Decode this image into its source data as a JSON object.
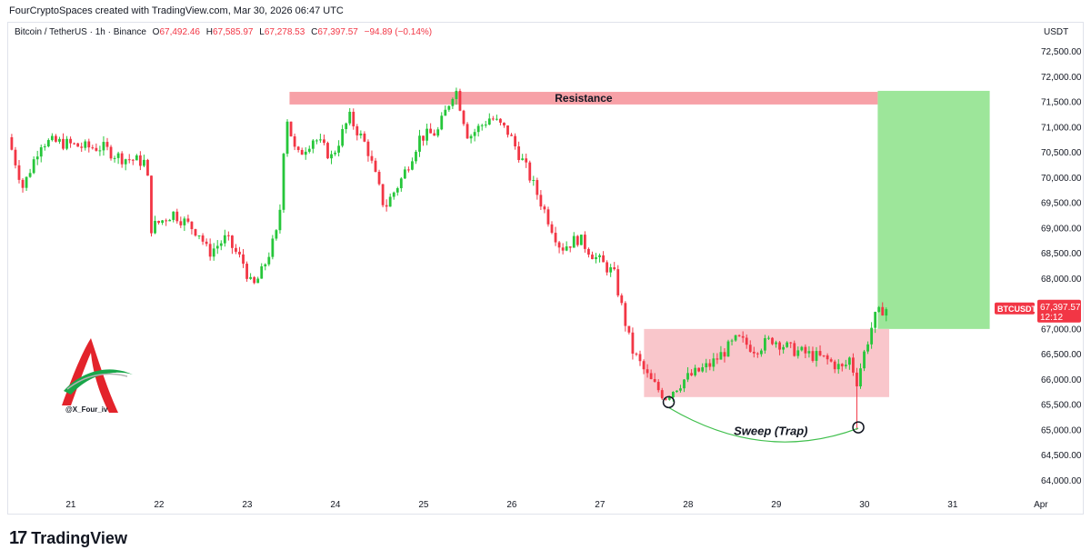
{
  "header": {
    "credit": "FourCryptoSpaces created with TradingView.com, Mar 30, 2026 06:47 UTC"
  },
  "symbol": {
    "name": "Bitcoin / TetherUS · 1h · Binance",
    "o_label": "O",
    "o_value": "67,492.46",
    "h_label": "H",
    "h_value": "67,585.97",
    "l_label": "L",
    "l_value": "67,278.53",
    "c_label": "C",
    "c_value": "67,397.57",
    "change": "−94.89 (−0.14%)"
  },
  "axis": {
    "unit": "USDT"
  },
  "price_tag": {
    "ticker": "BTCUSDT",
    "price": "67,397.57",
    "countdown": "12:12"
  },
  "watermark": {
    "handle": "@X_Four_iv"
  },
  "footer": {
    "brand_mark": "17",
    "brand_name": "TradingView"
  },
  "colors": {
    "up": "#22ab94",
    "up_candle": "#26c63a",
    "down": "#f23645",
    "resistance_fill": "#f7a1a7",
    "range_fill": "#f9c6cb",
    "target_fill": "#9de69a",
    "curve": "#3fbf4c"
  },
  "chart_data": {
    "type": "candlestick",
    "title": "Bitcoin / TetherUS · 1h · Binance",
    "y_ticks": [
      "64,000.00",
      "64,500.00",
      "65,000.00",
      "65,500.00",
      "66,000.00",
      "66,500.00",
      "67,000.00",
      "67,500.00",
      "68,000.00",
      "68,500.00",
      "69,000.00",
      "69,500.00",
      "70,000.00",
      "70,500.00",
      "71,000.00",
      "71,500.00",
      "72,000.00",
      "72,500.00"
    ],
    "ylim": [
      63700,
      72800
    ],
    "x_ticks": [
      "21",
      "22",
      "23",
      "24",
      "25",
      "26",
      "27",
      "28",
      "29",
      "30",
      "31",
      "Apr"
    ],
    "x_unit": "day_of_march",
    "xlim": [
      20.3,
      31.95
    ],
    "last_price": 67397.57,
    "path": [
      [
        20.33,
        70800
      ],
      [
        20.5,
        69800
      ],
      [
        20.7,
        70700
      ],
      [
        20.9,
        70700
      ],
      [
        21.2,
        70600
      ],
      [
        21.4,
        70600
      ],
      [
        21.6,
        70400
      ],
      [
        21.9,
        70300
      ],
      [
        21.95,
        69000
      ],
      [
        22.2,
        69300
      ],
      [
        22.5,
        68900
      ],
      [
        22.6,
        68500
      ],
      [
        22.8,
        68800
      ],
      [
        23.0,
        68300
      ],
      [
        23.1,
        67800
      ],
      [
        23.2,
        68100
      ],
      [
        23.4,
        69000
      ],
      [
        23.48,
        71300
      ],
      [
        23.6,
        70400
      ],
      [
        23.8,
        70800
      ],
      [
        24.0,
        70400
      ],
      [
        24.2,
        71200
      ],
      [
        24.4,
        70600
      ],
      [
        24.6,
        69400
      ],
      [
        24.8,
        70000
      ],
      [
        25.0,
        70800
      ],
      [
        25.2,
        70900
      ],
      [
        25.4,
        71800
      ],
      [
        25.55,
        70800
      ],
      [
        25.8,
        71200
      ],
      [
        26.0,
        70900
      ],
      [
        26.2,
        70200
      ],
      [
        26.4,
        69400
      ],
      [
        26.6,
        68600
      ],
      [
        26.8,
        68800
      ],
      [
        27.0,
        68400
      ],
      [
        27.2,
        68100
      ],
      [
        27.4,
        66600
      ],
      [
        27.6,
        66000
      ],
      [
        27.78,
        65650
      ],
      [
        28.0,
        66000
      ],
      [
        28.3,
        66300
      ],
      [
        28.6,
        66800
      ],
      [
        28.8,
        66600
      ],
      [
        29.0,
        66800
      ],
      [
        29.2,
        66600
      ],
      [
        29.4,
        66500
      ],
      [
        29.6,
        66400
      ],
      [
        29.8,
        66200
      ],
      [
        29.9,
        66500
      ],
      [
        29.93,
        65800
      ],
      [
        30.05,
        66600
      ],
      [
        30.15,
        67200
      ],
      [
        30.25,
        67400
      ]
    ],
    "wick_lows": [
      [
        27.78,
        65580
      ],
      [
        29.93,
        65000
      ]
    ],
    "resistance": {
      "label": "Resistance",
      "x_start": 23.48,
      "x_end": 30.15,
      "y_low": 71450,
      "y_high": 71700
    },
    "range_box": {
      "x_start": 27.5,
      "x_end": 30.28,
      "y_low": 65650,
      "y_high": 67000
    },
    "target_box": {
      "x_start": 30.15,
      "x_end": 31.42,
      "y_low": 67000,
      "y_high": 71720
    },
    "sweep": {
      "label": "Sweep (Trap)",
      "points": [
        [
          27.78,
          65550
        ],
        [
          29.93,
          65050
        ]
      ]
    }
  }
}
